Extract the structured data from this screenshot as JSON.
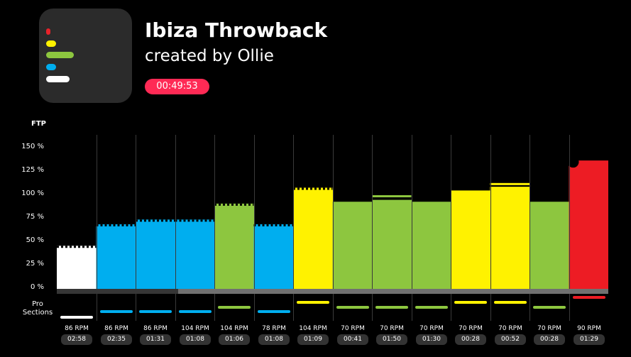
{
  "header": {
    "title": "Ibiza Throwback",
    "subtitle": "created by Ollie",
    "duration": "00:49:53"
  },
  "icon": {
    "name": "playlist-bars-icon",
    "bars": [
      {
        "color": "#e8222a",
        "length": 0.07
      },
      {
        "color": "#fff200",
        "length": 0.2
      },
      {
        "color": "#8dc63f",
        "length": 0.55
      },
      {
        "color": "#00aeef",
        "length": 0.2
      },
      {
        "color": "#ffffff",
        "length": 0.47
      }
    ]
  },
  "chart": {
    "ylabel": "FTP",
    "yticks": [
      "150 %",
      "125 %",
      "100 %",
      "75 %",
      "50 %",
      "25 %",
      "0 %"
    ],
    "pro_label": "Pro\nSections",
    "progress": 0.22
  },
  "chart_data": {
    "type": "bar",
    "title": "",
    "xlabel": "",
    "ylabel": "FTP",
    "ylim": [
      0,
      160
    ],
    "segments": [
      {
        "rpm": "86 RPM",
        "time": "02:58",
        "ftp": 46,
        "color": "#ffffff",
        "dashed": true,
        "pro_color": "#ffffff",
        "pro_level": "low"
      },
      {
        "rpm": "86 RPM",
        "time": "02:35",
        "ftp": 69,
        "color": "#00aeef",
        "dashed": true,
        "pro_color": "#00aeef",
        "pro_level": "mid"
      },
      {
        "rpm": "86 RPM",
        "time": "01:31",
        "ftp": 74,
        "color": "#00aeef",
        "dashed": true,
        "pro_color": "#00aeef",
        "pro_level": "mid"
      },
      {
        "rpm": "104 RPM",
        "time": "01:08",
        "ftp": 74,
        "color": "#00aeef",
        "dashed": true,
        "pro_color": "#00aeef",
        "pro_level": "mid"
      },
      {
        "rpm": "104 RPM",
        "time": "01:06",
        "ftp": 91,
        "color": "#8dc63f",
        "dashed": true,
        "pro_color": "#8dc63f",
        "pro_level": "highmid"
      },
      {
        "rpm": "78 RPM",
        "time": "01:08",
        "ftp": 69,
        "color": "#00aeef",
        "dashed": true,
        "pro_color": "#00aeef",
        "pro_level": "mid"
      },
      {
        "rpm": "104 RPM",
        "time": "01:09",
        "ftp": 108,
        "color": "#fff200",
        "dashed": true,
        "pro_color": "#fff200",
        "pro_level": "high"
      },
      {
        "rpm": "70 RPM",
        "time": "00:41",
        "ftp": 93,
        "color": "#8dc63f",
        "dashed": false,
        "pro_color": "#8dc63f",
        "pro_level": "highmid"
      },
      {
        "rpm": "70 RPM",
        "time": "01:50",
        "ftp": 95,
        "color": "#8dc63f",
        "dashed": false,
        "line_top": 100,
        "pro_color": "#8dc63f",
        "pro_level": "highmid"
      },
      {
        "rpm": "70 RPM",
        "time": "01:30",
        "ftp": 93,
        "color": "#8dc63f",
        "dashed": false,
        "pro_color": "#8dc63f",
        "pro_level": "highmid"
      },
      {
        "rpm": "70 RPM",
        "time": "00:28",
        "ftp": 105,
        "color": "#fff200",
        "dashed": false,
        "pro_color": "#fff200",
        "pro_level": "high"
      },
      {
        "rpm": "70 RPM",
        "time": "00:52",
        "ftp": 109,
        "color": "#fff200",
        "dashed": false,
        "line_top": 113,
        "pro_color": "#fff200",
        "pro_level": "high"
      },
      {
        "rpm": "70 RPM",
        "time": "00:28",
        "ftp": 93,
        "color": "#8dc63f",
        "dashed": false,
        "pro_color": "#8dc63f",
        "pro_level": "highmid"
      },
      {
        "rpm": "90 RPM",
        "time": "01:29",
        "ftp": 137,
        "color": "#ed1c24",
        "dashed": false,
        "pro_color": "#ed1c24",
        "pro_level": "top"
      }
    ]
  }
}
